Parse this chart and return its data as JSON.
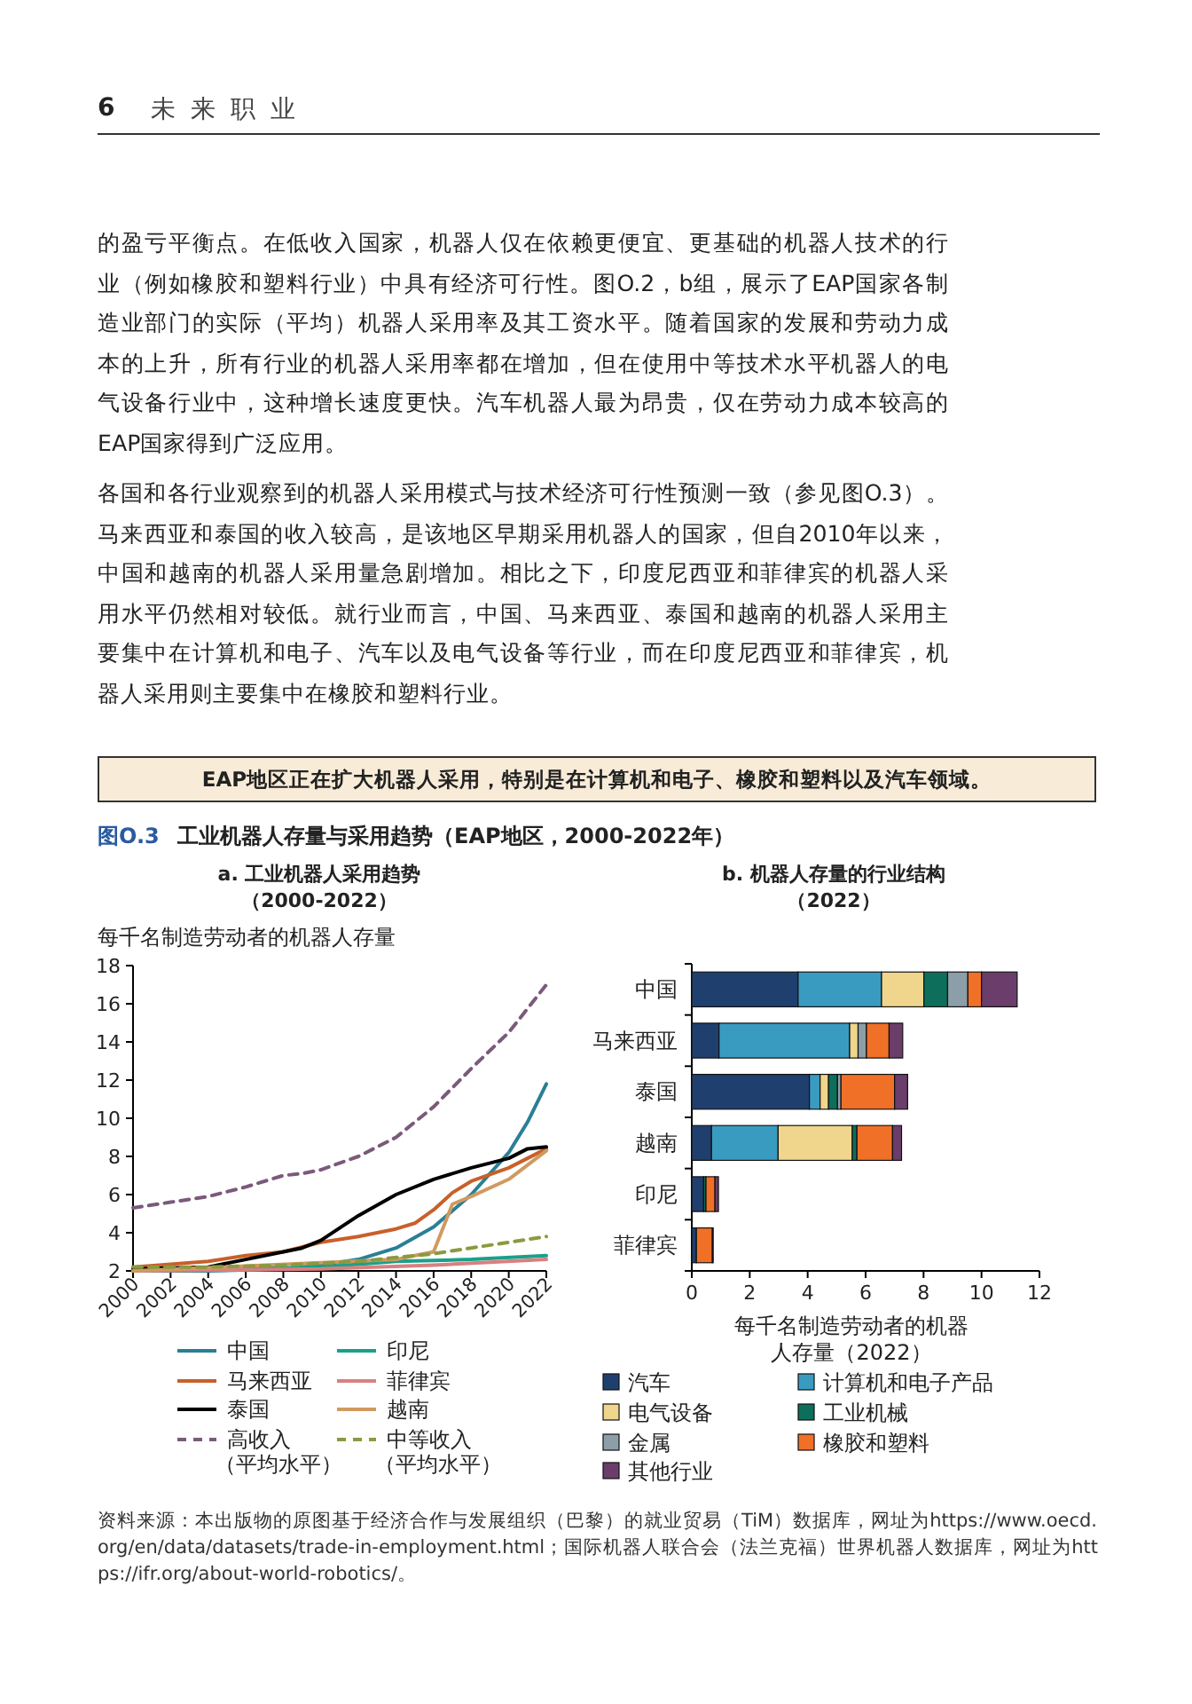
{
  "chart_data": [
    {
      "type": "line",
      "title": "a. 工业机器人采用趋势",
      "subtitle": "（2000-2022）",
      "ylabel": "每千名制造劳动者的机器人存量",
      "xlim": [
        2000,
        2022
      ],
      "xticks": [
        2000,
        2002,
        2004,
        2006,
        2008,
        2010,
        2012,
        2014,
        2016,
        2018,
        2020,
        2022
      ],
      "ylim": [
        2,
        18
      ],
      "yticks": [
        2,
        4,
        6,
        8,
        10,
        12,
        14,
        16,
        18
      ],
      "grid": false,
      "legend": "bottom",
      "annotations": [
        "6",
        "未 来 职 业",
        "的盈亏平衡点。在低收入国家，机器人仅在依赖更便宜、更基础的机器人技术的行业（例如橡胶和塑料行业）中具有经济可行性。图O.2，b组，展示了EAP国家各制造业部门的实际（平均）机器人采用率及其工资水平。随着国家的发展和劳动力成本的上升，所有行业的机器人采用率都在增加，但在使用中等技术水平机器人的电气设备行业中，这种增长速度更快。汽车机器人最为昂贵，仅在劳动力成本较高的EAP国家得到广泛应用。",
        "各国和各行业观察到的机器人采用模式与技术经济可行性预测一致（参见图O.3）。马来西亚和泰国的收入较高，是该地区早期采用机器人的国家，但自2010年以来，中国和越南的机器人采用量急剧增加。相比之下，印度尼西亚和菲律宾的机器人采用水平仍然相对较低。就行业而言，中国、马来西亚、泰国和越南的机器人采用主要集中在计算机和电子、汽车以及电气设备等行业，而在印度尼西亚和菲律宾，机器人采用则主要集中在橡胶和塑料行业。",
        "EAP地区正在扩大机器人采用，特别是在计算机和电子、橡胶和塑料以及汽车领域。",
        "图O.3",
        "工业机器人存量与采用趋势（EAP地区，2000-2022年）"
      ],
      "series": [
        {
          "name": "中国",
          "color": "#2a7f96",
          "line_style": "solid",
          "x": [
            2000,
            2004,
            2008,
            2010,
            2012,
            2014,
            2016,
            2018,
            2020,
            2021,
            2022
          ],
          "values": [
            2.0,
            2.0,
            2.1,
            2.3,
            2.6,
            3.2,
            4.3,
            6.0,
            8.2,
            9.8,
            11.8
          ]
        },
        {
          "name": "印尼",
          "color": "#1aa08a",
          "line_style": "solid",
          "x": [
            2000,
            2010,
            2014,
            2018,
            2022
          ],
          "values": [
            2.0,
            2.2,
            2.5,
            2.6,
            2.8
          ]
        },
        {
          "name": "马来西亚",
          "color": "#c8602a",
          "line_style": "solid",
          "x": [
            2000,
            2004,
            2006,
            2008,
            2010,
            2012,
            2014,
            2015,
            2016,
            2017,
            2018,
            2020,
            2022
          ],
          "values": [
            2.2,
            2.5,
            2.8,
            3.0,
            3.5,
            3.8,
            4.2,
            4.5,
            5.2,
            6.1,
            6.7,
            7.4,
            8.4
          ]
        },
        {
          "name": "菲律宾",
          "color": "#d88080",
          "line_style": "solid",
          "x": [
            2000,
            2010,
            2016,
            2022
          ],
          "values": [
            2.0,
            2.1,
            2.3,
            2.6
          ]
        },
        {
          "name": "泰国",
          "color": "#000000",
          "line_style": "solid",
          "x": [
            2000,
            2004,
            2006,
            2008,
            2009,
            2010,
            2012,
            2014,
            2016,
            2018,
            2020,
            2021,
            2022
          ],
          "values": [
            2.1,
            2.2,
            2.6,
            3.0,
            3.2,
            3.6,
            4.9,
            6.0,
            6.8,
            7.4,
            7.9,
            8.4,
            8.5
          ]
        },
        {
          "name": "越南",
          "color": "#d09a60",
          "line_style": "solid",
          "x": [
            2000,
            2014,
            2015,
            2016,
            2017,
            2018,
            2020,
            2022
          ],
          "values": [
            2.0,
            2.6,
            2.8,
            3.0,
            5.5,
            5.9,
            6.8,
            8.3
          ]
        },
        {
          "name": "高收入（平均水平）",
          "color": "#7a5a7a",
          "line_style": "dashed",
          "x": [
            2000,
            2002,
            2004,
            2006,
            2008,
            2009,
            2010,
            2012,
            2014,
            2016,
            2018,
            2020,
            2022
          ],
          "values": [
            5.3,
            5.6,
            5.9,
            6.4,
            7.0,
            7.1,
            7.3,
            8.0,
            9.0,
            10.6,
            12.6,
            14.5,
            17.0
          ]
        },
        {
          "name": "中等收入（平均水平）",
          "color": "#8a9a40",
          "line_style": "dashed",
          "x": [
            2000,
            2004,
            2008,
            2012,
            2016,
            2018,
            2020,
            2022
          ],
          "values": [
            2.2,
            2.2,
            2.3,
            2.5,
            2.9,
            3.2,
            3.5,
            3.8
          ]
        }
      ]
    },
    {
      "type": "bar",
      "orientation": "horizontal",
      "stacked": true,
      "title": "b. 机器人存量的行业结构",
      "subtitle": "（2022）",
      "xlabel": "每千名制造劳动者的机器人存量（2022）",
      "categories": [
        "中国",
        "马来西亚",
        "泰国",
        "越南",
        "印尼",
        "菲律宾"
      ],
      "xlim": [
        0,
        12
      ],
      "xticks": [
        0,
        2,
        4,
        6,
        8,
        10,
        12
      ],
      "grid": false,
      "legend": "bottom",
      "annotations": [
        "资料来源：本出版物的原图基于经济合作与发展组织（巴黎）的就业贸易（TiM）数据库，网址为https://www.oecd.org/en/data/datasets/trade-in-employment.html；国际机器人联合会（法兰克福）世界机器人数据库，网址为https://ifr.org/about-world-robotics/。"
      ],
      "series": [
        {
          "name": "汽车",
          "color": "#1f3f6e",
          "values": [
            3.67,
            0.94,
            4.06,
            0.68,
            0.41,
            0.16
          ]
        },
        {
          "name": "计算机和电子产品",
          "color": "#3a9bc1",
          "values": [
            2.88,
            4.51,
            0.37,
            2.3,
            null,
            0
          ]
        },
        {
          "name": "电气设备",
          "color": "#f0d58c",
          "values": [
            1.46,
            0.29,
            0.29,
            2.56,
            0,
            0
          ]
        },
        {
          "name": "工业机械",
          "color": "#0e6e5c",
          "values": [
            0.82,
            null,
            0.31,
            0.16,
            0.08,
            0
          ]
        },
        {
          "name": "金属",
          "color": "#8c9ea8",
          "values": [
            0.7,
            0.29,
            0.12,
            0,
            0,
            0
          ]
        },
        {
          "name": "橡胶和塑料",
          "color": "#f07028",
          "values": [
            0.47,
            0.78,
            1.85,
            1.23,
            0.31,
            0.55
          ]
        },
        {
          "name": "其他行业",
          "color": "#6a3d6b",
          "values": [
            1.23,
            0.47,
            0.45,
            0.31,
            0.12,
            0.03
          ]
        }
      ]
    }
  ]
}
